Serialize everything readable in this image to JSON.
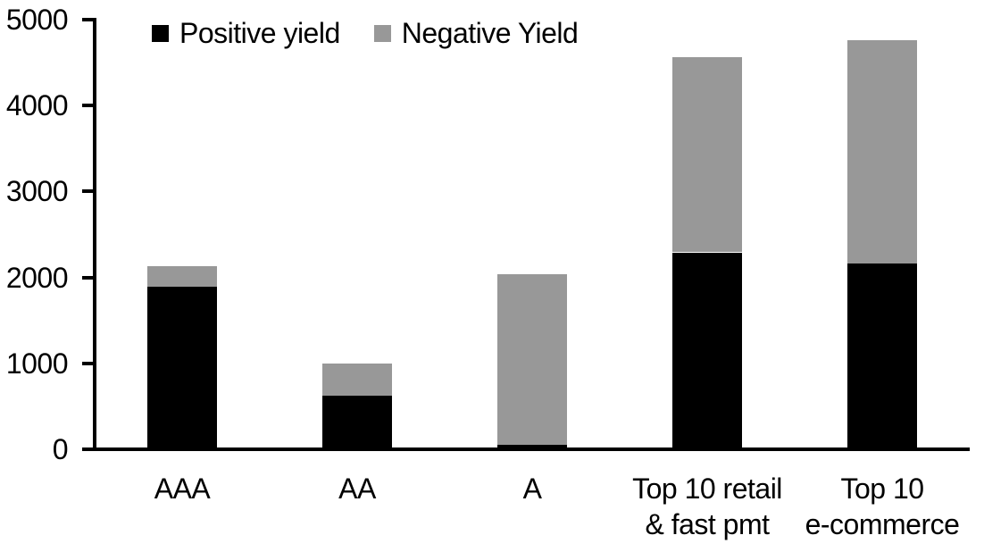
{
  "chart_data": {
    "type": "bar",
    "stacked": true,
    "title": "",
    "xlabel": "",
    "ylabel": "",
    "categories": [
      "AAA",
      "AA",
      "A",
      "Top 10 retail\n& fast pmt",
      "Top 10\ne-commerce"
    ],
    "series": [
      {
        "name": "Positive yield",
        "color": "#000000",
        "values": [
          1890,
          625,
          50,
          2290,
          2160
        ]
      },
      {
        "name": "Negative Yield",
        "color": "#989898",
        "values": [
          240,
          375,
          1990,
          2270,
          2600
        ]
      }
    ],
    "totals": [
      2130,
      1000,
      2040,
      4560,
      4760
    ],
    "ylim": [
      0,
      5000
    ],
    "yticks": [
      "0",
      "1000",
      "2000",
      "3000",
      "4000",
      "5000"
    ],
    "grid": false,
    "legend_position": "top"
  }
}
